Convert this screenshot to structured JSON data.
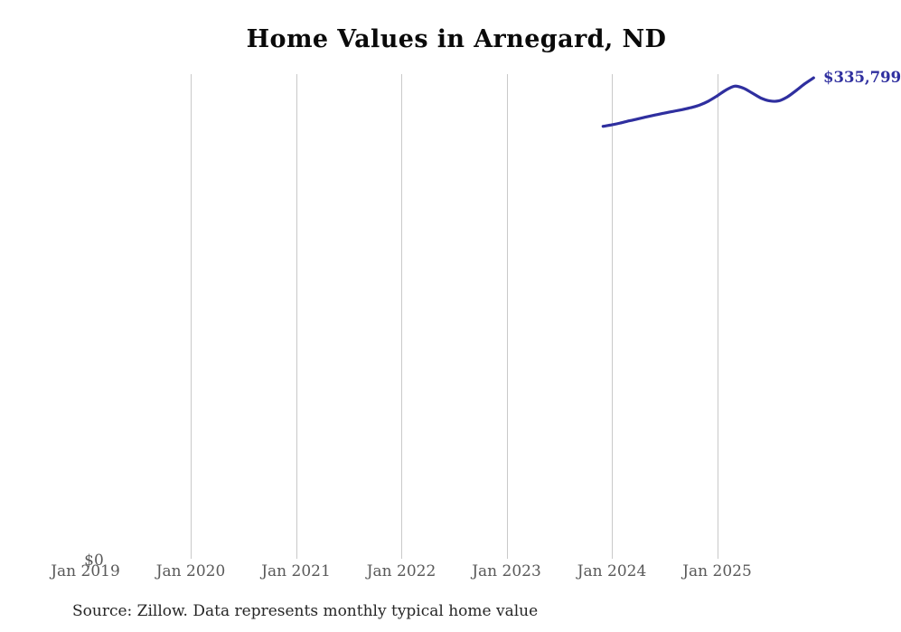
{
  "chart_data": {
    "type": "line",
    "title": "Home Values in Arnegard, ND",
    "xlabel": "",
    "ylabel": "",
    "source_note": "Source: Zillow. Data represents monthly typical home value",
    "y_zero_label": "$0",
    "end_label": "$335,799",
    "legend_position": "none",
    "grid": "vertical-yearly-only",
    "ylim": [
      0,
      338400
    ],
    "colors": {
      "line": "#2f2f9f",
      "end_label": "#2f2f9f",
      "gridline": "#c9c9c9",
      "tick_label": "#595959",
      "title": "#0a0a0a",
      "source": "#262626",
      "background": "#ffffff"
    },
    "x_ticks": [
      {
        "label": "Jan 2019",
        "year": 2019,
        "gridline": false
      },
      {
        "label": "Jan 2020",
        "year": 2020,
        "gridline": true
      },
      {
        "label": "Jan 2021",
        "year": 2021,
        "gridline": true
      },
      {
        "label": "Jan 2022",
        "year": 2022,
        "gridline": true
      },
      {
        "label": "Jan 2023",
        "year": 2023,
        "gridline": true
      },
      {
        "label": "Jan 2024",
        "year": 2024,
        "gridline": true
      },
      {
        "label": "Jan 2025",
        "year": 2025,
        "gridline": true
      }
    ],
    "series": [
      {
        "name": "Monthly typical home value",
        "dates": [
          "2023-12",
          "2024-01",
          "2024-02",
          "2024-03",
          "2024-04",
          "2024-05",
          "2024-06",
          "2024-07",
          "2024-08",
          "2024-09",
          "2024-10",
          "2024-11",
          "2024-12",
          "2025-01",
          "2025-02",
          "2025-03",
          "2025-04",
          "2025-05",
          "2025-06",
          "2025-07",
          "2025-08",
          "2025-09",
          "2025-10",
          "2025-11",
          "2025-12"
        ],
        "values": [
          302000,
          303000,
          304300,
          305800,
          307200,
          308600,
          309900,
          311200,
          312400,
          313600,
          315000,
          316800,
          319500,
          323200,
          327200,
          330000,
          328600,
          325200,
          321700,
          319700,
          319700,
          322500,
          326900,
          331700,
          335799
        ]
      }
    ]
  }
}
